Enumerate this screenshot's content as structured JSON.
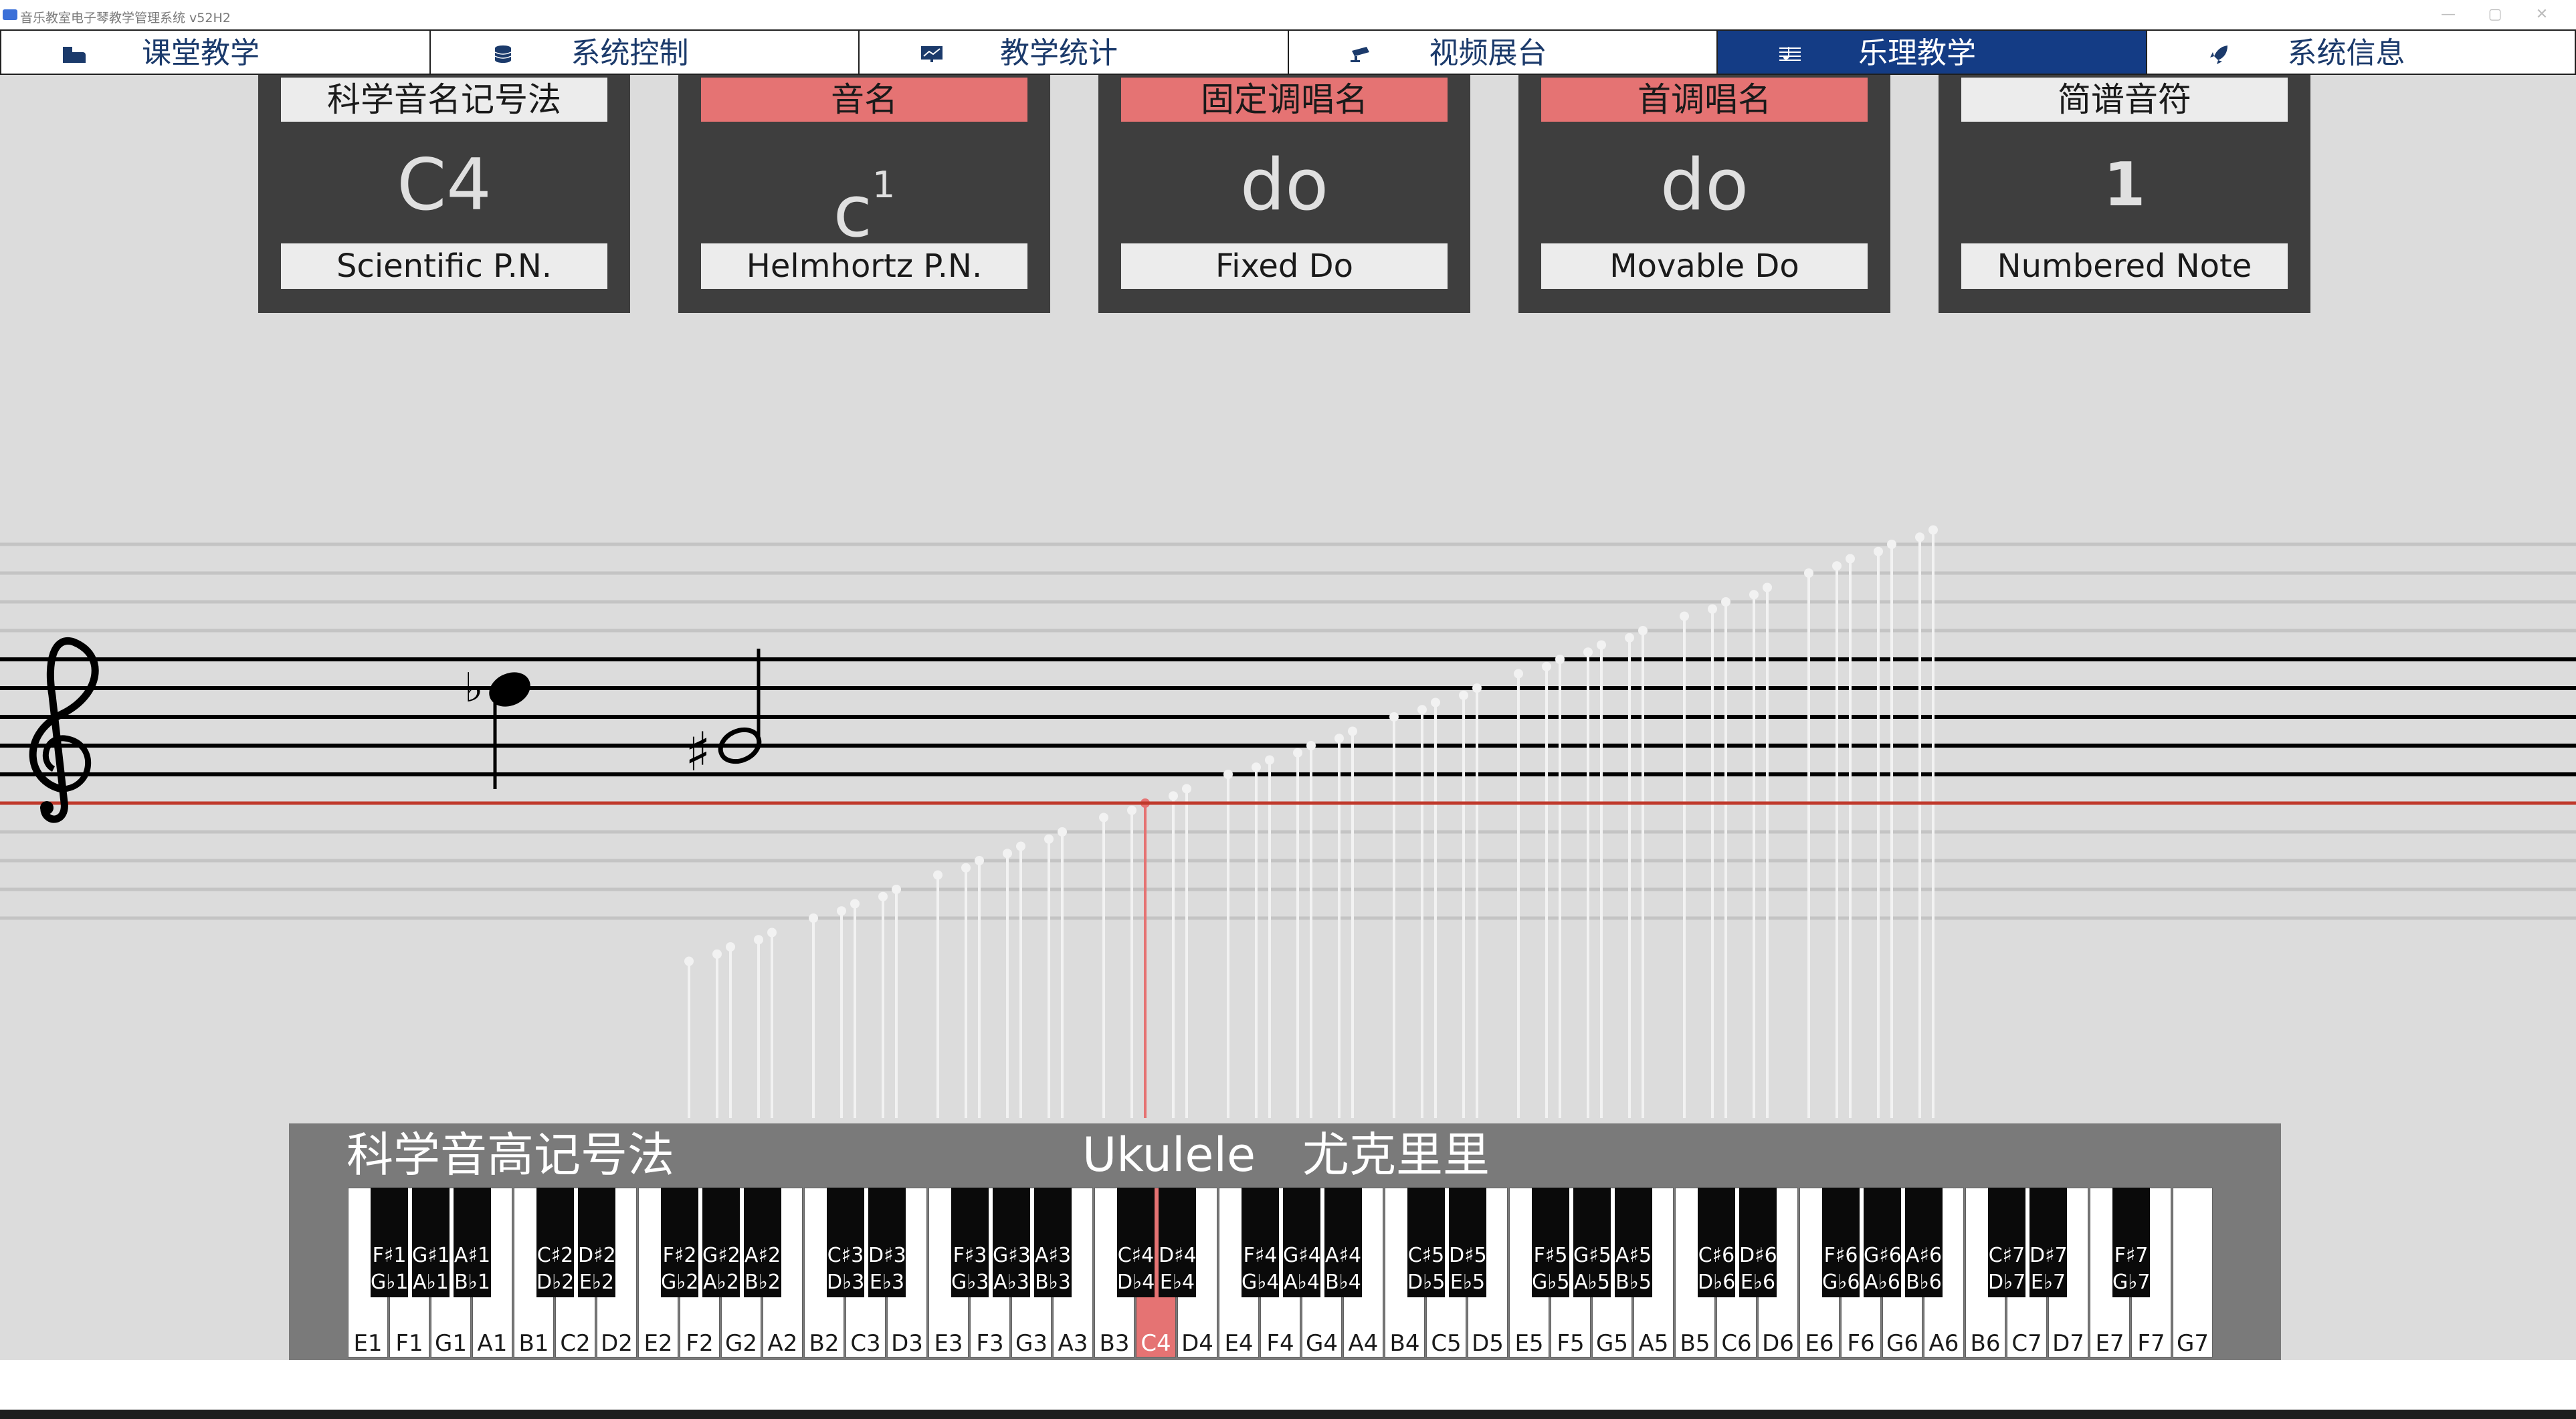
{
  "window": {
    "title": "音乐教室电子琴教学管理系统 v52H2",
    "minimize": "—",
    "maximize": "▢",
    "close": "✕"
  },
  "tabs": [
    {
      "label": "课堂教学",
      "icon": "piano-icon"
    },
    {
      "label": "系统控制",
      "icon": "database-icon"
    },
    {
      "label": "教学统计",
      "icon": "chart-icon"
    },
    {
      "label": "视频展台",
      "icon": "camera-icon"
    },
    {
      "label": "乐理教学",
      "icon": "sheet-music-icon",
      "active": true
    },
    {
      "label": "系统信息",
      "icon": "rocket-icon"
    }
  ],
  "cards": [
    {
      "category": "科学音名记号法",
      "value": "C4",
      "english": "Scientific P.N.",
      "highlighted": false
    },
    {
      "category": "音名",
      "value": "c",
      "superscript": "1",
      "english": "Helmhortz P.N.",
      "highlighted": true
    },
    {
      "category": "固定调唱名",
      "value": "do",
      "english": "Fixed Do",
      "highlighted": true
    },
    {
      "category": "首调唱名",
      "value": "do",
      "english": "Movable Do",
      "highlighted": true
    },
    {
      "category": "简谱音符",
      "value": "1",
      "english": "Numbered Note",
      "highlighted": false
    }
  ],
  "staff": {
    "clef": "treble-clef-icon",
    "flat_symbol": "♭",
    "sharp_symbol": "♯",
    "selected_note": "C4"
  },
  "piano": {
    "caption_left": "科学音高记号法",
    "caption_instrument": "Ukulele",
    "caption_instrument_cn": "尤克里里",
    "selected_key": "C4",
    "white_keys": [
      "E1",
      "F1",
      "G1",
      "A1",
      "B1",
      "C2",
      "D2",
      "E2",
      "F2",
      "G2",
      "A2",
      "B2",
      "C3",
      "D3",
      "E3",
      "F3",
      "G3",
      "A3",
      "B3",
      "C4",
      "D4",
      "E4",
      "F4",
      "G4",
      "A4",
      "B4",
      "C5",
      "D5",
      "E5",
      "F5",
      "G5",
      "A5",
      "B5",
      "C6",
      "D6",
      "E6",
      "F6",
      "G6",
      "A6",
      "B6",
      "C7",
      "D7",
      "E7",
      "F7",
      "G7"
    ],
    "black_keys": [
      {
        "after": 1,
        "top": "F♯1",
        "bottom": "G♭1"
      },
      {
        "after": 2,
        "top": "G♯1",
        "bottom": "A♭1"
      },
      {
        "after": 3,
        "top": "A♯1",
        "bottom": "B♭1"
      },
      {
        "after": 5,
        "top": "C♯2",
        "bottom": "D♭2"
      },
      {
        "after": 6,
        "top": "D♯2",
        "bottom": "E♭2"
      },
      {
        "after": 8,
        "top": "F♯2",
        "bottom": "G♭2"
      },
      {
        "after": 9,
        "top": "G♯2",
        "bottom": "A♭2"
      },
      {
        "after": 10,
        "top": "A♯2",
        "bottom": "B♭2"
      },
      {
        "after": 12,
        "top": "C♯3",
        "bottom": "D♭3"
      },
      {
        "after": 13,
        "top": "D♯3",
        "bottom": "E♭3"
      },
      {
        "after": 15,
        "top": "F♯3",
        "bottom": "G♭3"
      },
      {
        "after": 16,
        "top": "G♯3",
        "bottom": "A♭3"
      },
      {
        "after": 17,
        "top": "A♯3",
        "bottom": "B♭3"
      },
      {
        "after": 19,
        "top": "C♯4",
        "bottom": "D♭4"
      },
      {
        "after": 20,
        "top": "D♯4",
        "bottom": "E♭4"
      },
      {
        "after": 22,
        "top": "F♯4",
        "bottom": "G♭4"
      },
      {
        "after": 23,
        "top": "G♯4",
        "bottom": "A♭4"
      },
      {
        "after": 24,
        "top": "A♯4",
        "bottom": "B♭4"
      },
      {
        "after": 26,
        "top": "C♯5",
        "bottom": "D♭5"
      },
      {
        "after": 27,
        "top": "D♯5",
        "bottom": "E♭5"
      },
      {
        "after": 29,
        "top": "F♯5",
        "bottom": "G♭5"
      },
      {
        "after": 30,
        "top": "G♯5",
        "bottom": "A♭5"
      },
      {
        "after": 31,
        "top": "A♯5",
        "bottom": "B♭5"
      },
      {
        "after": 33,
        "top": "C♯6",
        "bottom": "D♭6"
      },
      {
        "after": 34,
        "top": "D♯6",
        "bottom": "E♭6"
      },
      {
        "after": 36,
        "top": "F♯6",
        "bottom": "G♭6"
      },
      {
        "after": 37,
        "top": "G♯6",
        "bottom": "A♭6"
      },
      {
        "after": 38,
        "top": "A♯6",
        "bottom": "B♭6"
      },
      {
        "after": 40,
        "top": "C♯7",
        "bottom": "D♭7"
      },
      {
        "after": 41,
        "top": "D♯7",
        "bottom": "E♭7"
      },
      {
        "after": 43,
        "top": "F♯7",
        "bottom": "G♭7"
      }
    ]
  },
  "colors": {
    "active_tab": "#143c85",
    "highlight": "#e57373",
    "card_bg": "#3e3e3e",
    "reference_line": "#c0392b"
  }
}
